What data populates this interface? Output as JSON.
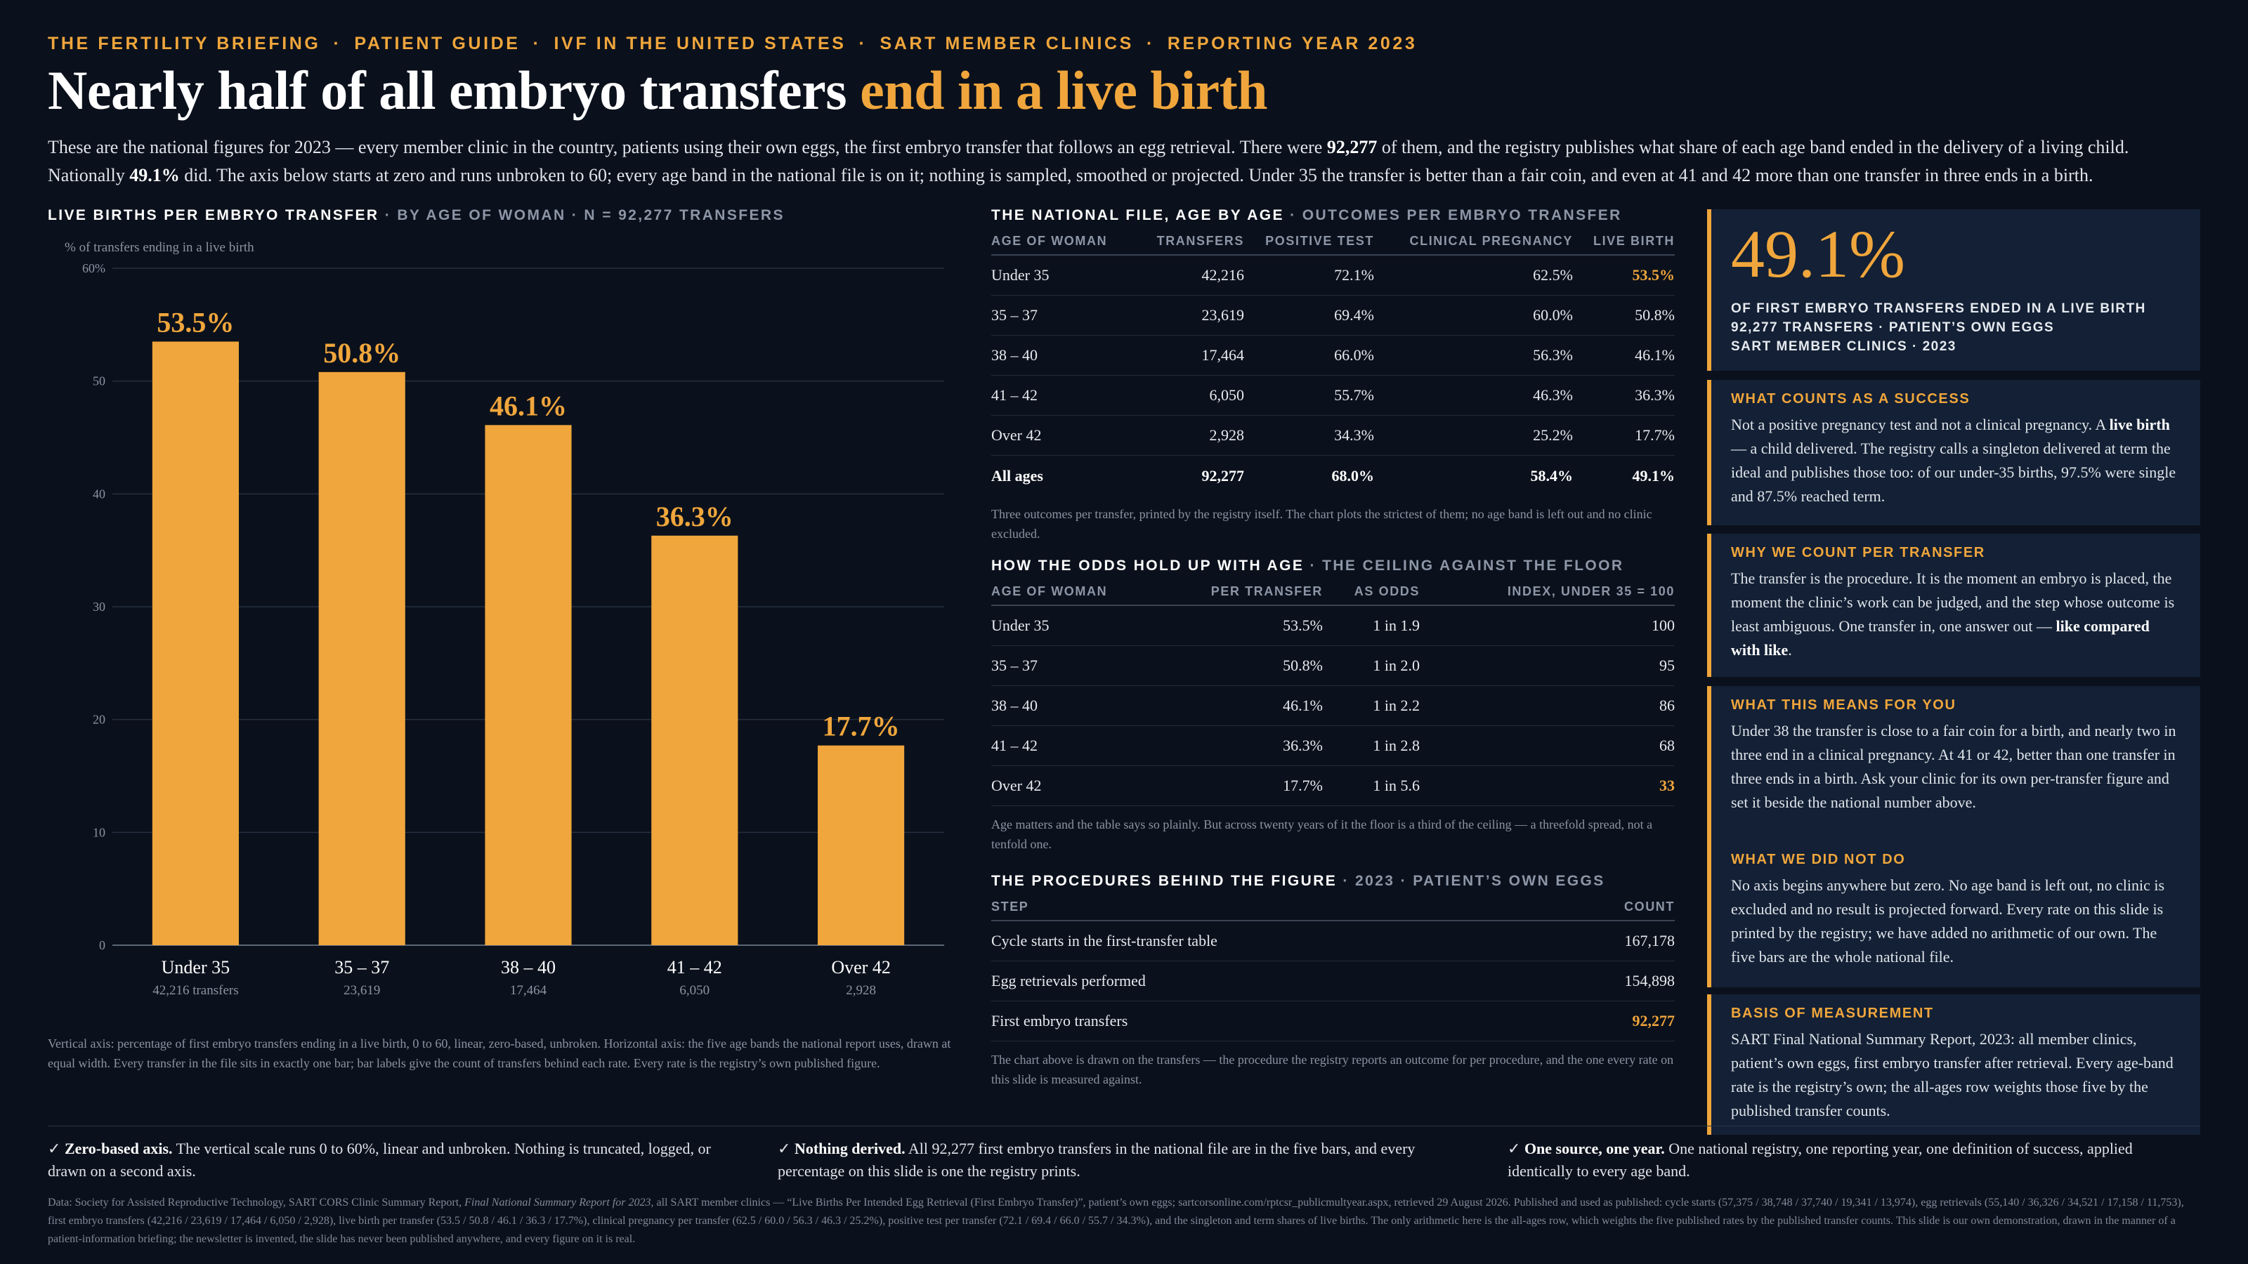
{
  "kicker": [
    "THE FERTILITY BRIEFING",
    "PATIENT GUIDE",
    "IVF IN THE UNITED STATES",
    "SART MEMBER CLINICS",
    "REPORTING YEAR 2023"
  ],
  "kicker_sep": "·",
  "headline": {
    "main": "Nearly half of all embryo transfers ",
    "accent": "end in a live birth"
  },
  "intro": {
    "p1": "These are the national figures for 2023 — every member clinic in the country, patients using their own eggs, the first embryo transfer that follows an egg retrieval. There were ",
    "n": "92,277",
    "p2": " of them, and the registry publishes what share of each age band ended in the delivery of a living child. Nationally ",
    "pct": "49.1%",
    "p3": " did. The axis below starts at zero and runs unbroken to 60; every age band in the national file is on it; nothing is sampled, smoothed or projected. Under 35 the transfer is better than a fair coin, and even at 41 and 42 more than one transfer in three ends in a birth."
  },
  "chart_head": {
    "title": "LIVE BIRTHS PER EMBRYO TRANSFER",
    "sub": "· BY AGE OF WOMAN · N = 92,277 TRANSFERS"
  },
  "chart_data": {
    "type": "bar",
    "ylabel": "% of transfers ending in a live birth",
    "ylim": [
      0,
      60
    ],
    "yticks": [
      0,
      10,
      20,
      30,
      40,
      50,
      60
    ],
    "ytick_labels": [
      "0",
      "10",
      "20",
      "30",
      "40",
      "50",
      "60%"
    ],
    "categories": [
      "Under 35",
      "35 – 37",
      "38 – 40",
      "41 – 42",
      "Over 42"
    ],
    "values": [
      53.5,
      50.8,
      46.1,
      36.3,
      17.7
    ],
    "value_labels": [
      "53.5%",
      "50.8%",
      "46.1%",
      "36.3%",
      "17.7%"
    ],
    "count_labels": [
      "42,216 transfers",
      "23,619",
      "17,464",
      "6,050",
      "2,928"
    ],
    "grid": true,
    "colors": {
      "bar": "#f0a63c",
      "grid": "#263040",
      "axis": "#5b6575"
    }
  },
  "chart_note": "Vertical axis: percentage of first embryo transfers ending in a live birth, 0 to 60, linear, zero-based, unbroken. Horizontal axis: the five age bands the national report uses, drawn at equal width. Every transfer in the file sits in exactly one bar; bar labels give the count of transfers behind each rate. Every rate is the registry’s own published figure.",
  "national": {
    "title": "THE NATIONAL FILE, AGE BY AGE",
    "sub": "· OUTCOMES PER EMBRYO TRANSFER",
    "cols": [
      "AGE OF WOMAN",
      "TRANSFERS",
      "POSITIVE TEST",
      "CLINICAL PREGNANCY",
      "LIVE BIRTH"
    ],
    "rows": [
      [
        "Under 35",
        "42,216",
        "72.1%",
        "62.5%",
        "53.5%"
      ],
      [
        "35 – 37",
        "23,619",
        "69.4%",
        "60.0%",
        "50.8%"
      ],
      [
        "38 – 40",
        "17,464",
        "66.0%",
        "56.3%",
        "46.1%"
      ],
      [
        "41 – 42",
        "6,050",
        "55.7%",
        "46.3%",
        "36.3%"
      ],
      [
        "Over 42",
        "2,928",
        "34.3%",
        "25.2%",
        "17.7%"
      ]
    ],
    "total": [
      "All ages",
      "92,277",
      "68.0%",
      "58.4%",
      "49.1%"
    ],
    "note": "Three outcomes per transfer, printed by the registry itself. The chart plots the strictest of them; no age band is left out and no clinic excluded."
  },
  "odds": {
    "title": "HOW THE ODDS HOLD UP WITH AGE",
    "sub": "· THE CEILING AGAINST THE FLOOR",
    "cols": [
      "AGE OF WOMAN",
      "PER TRANSFER",
      "AS ODDS",
      "INDEX, UNDER 35 = 100"
    ],
    "rows": [
      [
        "Under 35",
        "53.5%",
        "1 in 1.9",
        "100"
      ],
      [
        "35 – 37",
        "50.8%",
        "1 in 2.0",
        "95"
      ],
      [
        "38 – 40",
        "46.1%",
        "1 in 2.2",
        "86"
      ],
      [
        "41 – 42",
        "36.3%",
        "1 in 2.8",
        "68"
      ],
      [
        "Over 42",
        "17.7%",
        "1 in 5.6",
        "33"
      ]
    ],
    "note": "Age matters and the table says so plainly. But across twenty years of it the floor is a third of the ceiling — a threefold spread, not a tenfold one."
  },
  "procedures": {
    "title": "THE PROCEDURES BEHIND THE FIGURE",
    "sub": "· 2023 · PATIENT’S OWN EGGS",
    "cols": [
      "STEP",
      "COUNT"
    ],
    "rows": [
      [
        "Cycle starts in the first-transfer table",
        "167,178"
      ],
      [
        "Egg retrievals performed",
        "154,898"
      ],
      [
        "First embryo transfers",
        "92,277"
      ]
    ],
    "note": "The chart above is drawn on the transfers — the procedure the registry reports an outcome for per procedure, and the one every rate on this slide is measured against."
  },
  "stat": {
    "value": "49.1%",
    "line1": "OF FIRST EMBRYO TRANSFERS ENDED IN A LIVE BIRTH",
    "line2": "92,277 TRANSFERS · PATIENT’S OWN EGGS",
    "line3": "SART MEMBER CLINICS · 2023"
  },
  "cards": {
    "success": {
      "title": "WHAT COUNTS AS A SUCCESS",
      "a": "Not a positive pregnancy test and not a clinical pregnancy. A ",
      "b": "live birth",
      "c": " — a child delivered. The registry calls a singleton delivered at term the ideal and publishes those too: of our under-35 births, 97.5% were single and 87.5% reached term."
    },
    "transfer": {
      "title": "WHY WE COUNT PER TRANSFER",
      "a": "The transfer is the procedure. It is the moment an embryo is placed, the moment the clinic’s work can be judged, and the step whose outcome is least ambiguous. One transfer in, one answer out — ",
      "b": "like compared with like",
      "c": "."
    },
    "means": {
      "title": "WHAT THIS MEANS FOR YOU",
      "body": "Under 38 the transfer is close to a fair coin for a birth, and nearly two in three end in a clinical pregnancy. At 41 or 42, better than one transfer in three ends in a birth. Ask your clinic for its own per-transfer figure and set it beside the national number above."
    },
    "notdo": {
      "title": "WHAT WE DID NOT DO",
      "body": "No axis begins anywhere but zero. No age band is left out, no clinic is excluded and no result is projected forward. Every rate on this slide is printed by the registry; we have added no arithmetic of our own. The five bars are the whole national file."
    },
    "basis": {
      "title": "BASIS OF MEASUREMENT",
      "body": "SART Final National Summary Report, 2023: all member clinics, patient’s own eggs, first embryo transfer after retrieval. Every age-band rate is the registry’s own; the all-ages row weights those five by the published transfer counts."
    }
  },
  "checks": [
    {
      "mark": "✓",
      "bold": "Zero-based axis.",
      "text": " The vertical scale runs 0 to 60%, linear and unbroken. Nothing is truncated, logged, or drawn on a second axis."
    },
    {
      "mark": "✓",
      "bold": "Nothing derived.",
      "text": " All 92,277 first embryo transfers in the national file are in the five bars, and every percentage on this slide is one the registry prints."
    },
    {
      "mark": "✓",
      "bold": "One source, one year.",
      "text": " One national registry, one reporting year, one definition of success, applied identically to every age band."
    }
  ],
  "source": {
    "a": "Data: Society for Assisted Reproductive Technology, SART CORS Clinic Summary Report, ",
    "i": "Final National Summary Report for 2023",
    "b": ", all SART member clinics — “Live Births Per Intended Egg Retrieval (First Embryo Transfer)”, patient’s own eggs; sartcorsonline.com/rptcsr_publicmultyear.aspx, retrieved 29 August 2026. Published and used as published: cycle starts (57,375 / 38,748 / 37,740 / 19,341 / 13,974), egg retrievals (55,140 / 36,326 / 34,521 / 17,158 / 11,753), first embryo transfers (42,216 / 23,619 / 17,464 / 6,050 / 2,928), live birth per transfer (53.5 / 50.8 / 46.1 / 36.3 / 17.7%), clinical pregnancy per transfer (62.5 / 60.0 / 56.3 / 46.3 / 25.2%), positive test per transfer (72.1 / 69.4 / 66.0 / 55.7 / 34.3%), and the singleton and term shares of live births. The only arithmetic here is the all-ages row, which weights the five published rates by the published transfer counts. This slide is our own demonstration, drawn in the manner of a patient-information briefing; the newsletter is invented, the slide has never been published anywhere, and every figure on it is real."
  }
}
